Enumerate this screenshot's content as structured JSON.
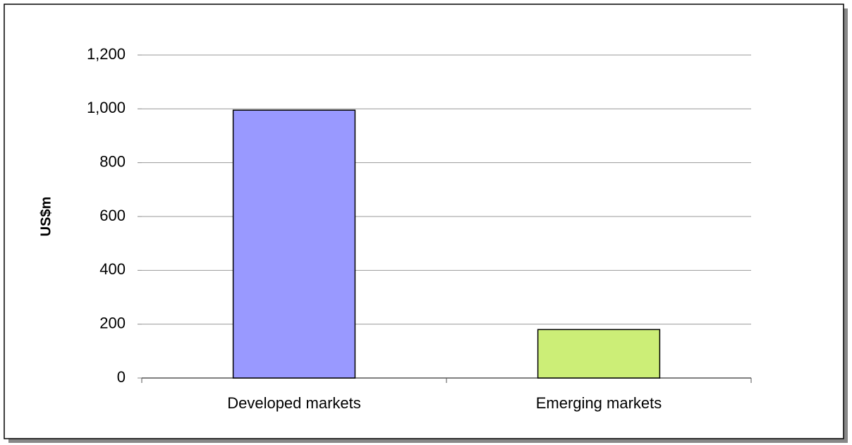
{
  "chart_data": {
    "type": "bar",
    "y_label": "US$m",
    "categories": [
      "Developed markets",
      "Emerging markets"
    ],
    "values": [
      995,
      180
    ],
    "colors": [
      "#9999ff",
      "#ccee77"
    ],
    "ylim": [
      0,
      1200
    ],
    "yticks": [
      0,
      200,
      400,
      600,
      800,
      {
        "value": 1000,
        "label": "1,000"
      },
      {
        "value": 1200,
        "label": "1,200"
      }
    ],
    "grid": true
  }
}
